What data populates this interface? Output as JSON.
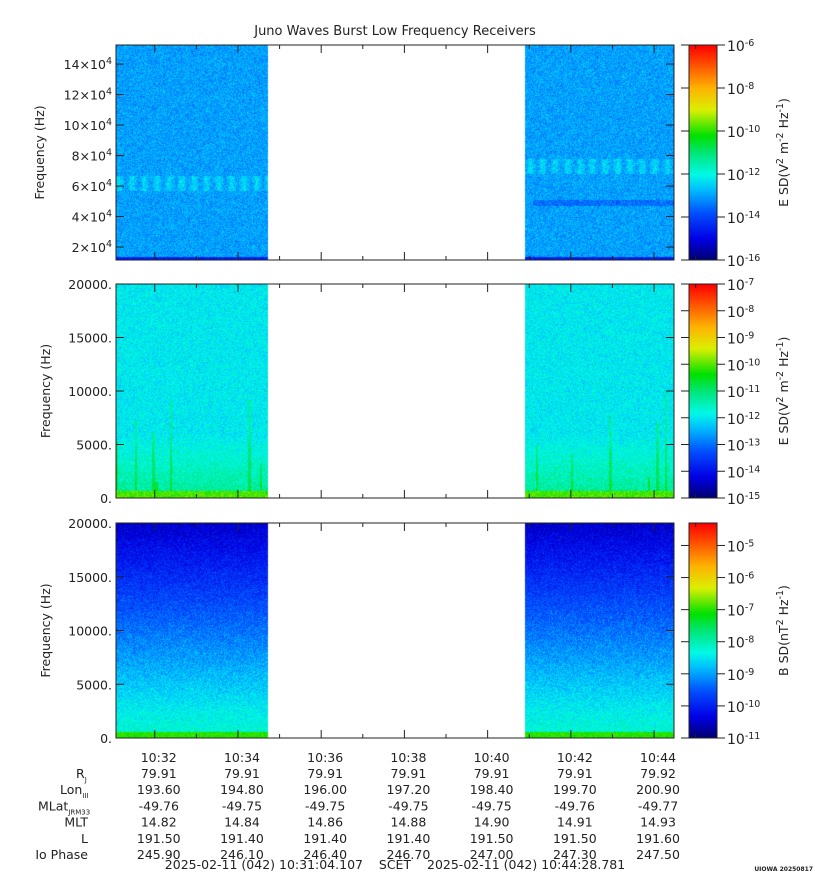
{
  "title": "Juno Waves Burst Low Frequency Receivers",
  "chart_data": [
    {
      "type": "heatmap",
      "name": "E-field high frequency spectrogram",
      "ylabel": "Frequency (Hz)",
      "ylim": [
        11500,
        152500
      ],
      "yticks": [
        {
          "m": "2×10",
          "e": "4",
          "v": 20000
        },
        {
          "m": "4×10",
          "e": "4",
          "v": 40000
        },
        {
          "m": "6×10",
          "e": "4",
          "v": 60000
        },
        {
          "m": "8×10",
          "e": "4",
          "v": 80000
        },
        {
          "m": "10×10",
          "e": "4",
          "v": 100000
        },
        {
          "m": "12×10",
          "e": "4",
          "v": 120000
        },
        {
          "m": "14×10",
          "e": "4",
          "v": 140000
        }
      ],
      "colorbar": {
        "label": "E SD(V^2 m^-2 Hz^-1)",
        "label_parts": [
          "E SD(V",
          "2",
          " m",
          "-2",
          " Hz",
          "-1",
          ")"
        ],
        "log_range": [
          -16,
          -6
        ],
        "ticks": [
          {
            "m": "10",
            "e": "-6",
            "v": -6
          },
          {
            "m": "10",
            "e": "-8",
            "v": -8
          },
          {
            "m": "10",
            "e": "-10",
            "v": -10
          },
          {
            "m": "10",
            "e": "-12",
            "v": -12
          },
          {
            "m": "10",
            "e": "-14",
            "v": -14
          },
          {
            "m": "10",
            "e": "-16",
            "v": -16
          }
        ]
      }
    },
    {
      "type": "heatmap",
      "name": "E-field low frequency spectrogram",
      "ylabel": "Frequency (Hz)",
      "ylim": [
        0,
        20000
      ],
      "yticks": [
        {
          "m": "0.",
          "v": 0
        },
        {
          "m": "5000.",
          "v": 5000
        },
        {
          "m": "10000.",
          "v": 10000
        },
        {
          "m": "15000.",
          "v": 15000
        },
        {
          "m": "20000.",
          "v": 20000
        }
      ],
      "colorbar": {
        "label": "E SD(V^2 m^-2 Hz^-1)",
        "label_parts": [
          "E SD(V",
          "2",
          " m",
          "-2",
          " Hz",
          "-1",
          ")"
        ],
        "log_range": [
          -15,
          -7
        ],
        "ticks": [
          {
            "m": "10",
            "e": "-7",
            "v": -7
          },
          {
            "m": "10",
            "e": "-8",
            "v": -8
          },
          {
            "m": "10",
            "e": "-9",
            "v": -9
          },
          {
            "m": "10",
            "e": "-10",
            "v": -10
          },
          {
            "m": "10",
            "e": "-11",
            "v": -11
          },
          {
            "m": "10",
            "e": "-12",
            "v": -12
          },
          {
            "m": "10",
            "e": "-13",
            "v": -13
          },
          {
            "m": "10",
            "e": "-14",
            "v": -14
          },
          {
            "m": "10",
            "e": "-15",
            "v": -15
          }
        ]
      }
    },
    {
      "type": "heatmap",
      "name": "B-field spectrogram",
      "ylabel": "Frequency (Hz)",
      "ylim": [
        0,
        20000
      ],
      "yticks": [
        {
          "m": "0.",
          "v": 0
        },
        {
          "m": "5000.",
          "v": 5000
        },
        {
          "m": "10000.",
          "v": 10000
        },
        {
          "m": "15000.",
          "v": 15000
        },
        {
          "m": "20000.",
          "v": 20000
        }
      ],
      "colorbar": {
        "label": "B SD(nT^2 Hz^-1)",
        "label_parts": [
          "B SD(nT",
          "2",
          " Hz",
          "-1",
          ")"
        ],
        "log_range": [
          -11,
          -4.3
        ],
        "ticks": [
          {
            "m": "10",
            "e": "-5",
            "v": -5
          },
          {
            "m": "10",
            "e": "-6",
            "v": -6
          },
          {
            "m": "10",
            "e": "-7",
            "v": -7
          },
          {
            "m": "10",
            "e": "-8",
            "v": -8
          },
          {
            "m": "10",
            "e": "-9",
            "v": -9
          },
          {
            "m": "10",
            "e": "-10",
            "v": -10
          },
          {
            "m": "10",
            "e": "-11",
            "v": -11
          }
        ]
      }
    }
  ],
  "time_axis": {
    "start_seconds": 0,
    "end_seconds": 804.67,
    "data_intervals_seconds": [
      [
        0,
        219
      ],
      [
        589,
        804.67
      ]
    ],
    "ticks": [
      {
        "label": "10:32",
        "s": 55.9
      },
      {
        "label": "10:34",
        "s": 175.9
      },
      {
        "label": "10:36",
        "s": 295.9
      },
      {
        "label": "10:38",
        "s": 415.9
      },
      {
        "label": "10:40",
        "s": 535.9
      },
      {
        "label": "10:42",
        "s": 655.9
      },
      {
        "label": "10:44",
        "s": 775.9
      }
    ]
  },
  "ephemeris": {
    "rows": [
      {
        "label": "R",
        "sub": "J",
        "values": [
          "79.91",
          "79.91",
          "79.91",
          "79.91",
          "79.91",
          "79.91",
          "79.92"
        ]
      },
      {
        "label": "Lon",
        "sub": "III",
        "values": [
          "193.60",
          "194.80",
          "196.00",
          "197.20",
          "198.40",
          "199.70",
          "200.90"
        ]
      },
      {
        "label": "MLat",
        "sub": "JRM33",
        "values": [
          "-49.76",
          "-49.75",
          "-49.75",
          "-49.75",
          "-49.75",
          "-49.76",
          "-49.77"
        ]
      },
      {
        "label": "MLT",
        "sub": "",
        "values": [
          "14.82",
          "14.84",
          "14.86",
          "14.88",
          "14.90",
          "14.91",
          "14.93"
        ]
      },
      {
        "label": "L",
        "sub": "",
        "values": [
          "191.50",
          "191.40",
          "191.40",
          "191.40",
          "191.50",
          "191.50",
          "191.60"
        ]
      },
      {
        "label": "Io Phase",
        "sub": "",
        "values": [
          "245.90",
          "246.10",
          "246.40",
          "246.70",
          "247.00",
          "247.30",
          "247.50"
        ]
      }
    ]
  },
  "footer": {
    "start": "2025-02-11 (042) 10:31:04.107",
    "scet": "SCET",
    "end": "2025-02-11 (042) 10:44:28.781"
  },
  "stamp": "UIOWA 20250817"
}
